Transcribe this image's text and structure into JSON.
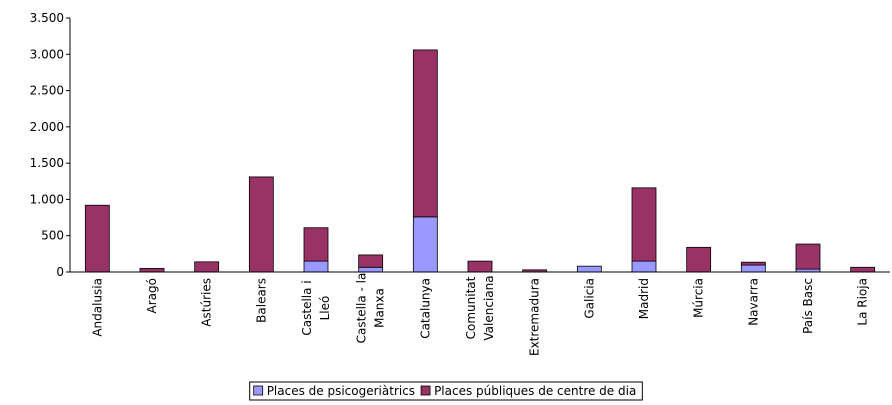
{
  "chart_data": {
    "type": "stacked_bar",
    "categories": [
      [
        "Andalusia"
      ],
      [
        "Aragó"
      ],
      [
        "Astúries"
      ],
      [
        "Balears"
      ],
      [
        "Castella i",
        "Lleó"
      ],
      [
        "Castella - la",
        "Manxa"
      ],
      [
        "Catalunya"
      ],
      [
        "Comunitat",
        "Valenciana"
      ],
      [
        "Extremadura"
      ],
      [
        "Galicia"
      ],
      [
        "Madrid"
      ],
      [
        "Múrcia"
      ],
      [
        "Navarra"
      ],
      [
        "País Basc"
      ],
      [
        "La Rioja"
      ]
    ],
    "series": [
      {
        "name": "Places de psicogeriàtrics",
        "color": "#9999ff",
        "values": [
          0,
          0,
          0,
          0,
          150,
          65,
          760,
          0,
          0,
          80,
          150,
          0,
          95,
          40,
          0
        ]
      },
      {
        "name": "Places públiques de centre de dia",
        "color": "#993366",
        "values": [
          920,
          50,
          140,
          1310,
          460,
          170,
          2300,
          150,
          30,
          0,
          1010,
          340,
          40,
          345,
          65
        ]
      }
    ],
    "ylim": [
      0,
      3500
    ],
    "yticks": [
      0,
      500,
      {
        "value": 1000,
        "label": "1.000"
      },
      {
        "value": 1500,
        "label": "1.500"
      },
      {
        "value": 2000,
        "label": "2.000"
      },
      {
        "value": 2500,
        "label": "2.500"
      },
      {
        "value": 3000,
        "label": "3.000"
      },
      {
        "value": 3500,
        "label": "3.500"
      }
    ],
    "legend": "bottom"
  }
}
